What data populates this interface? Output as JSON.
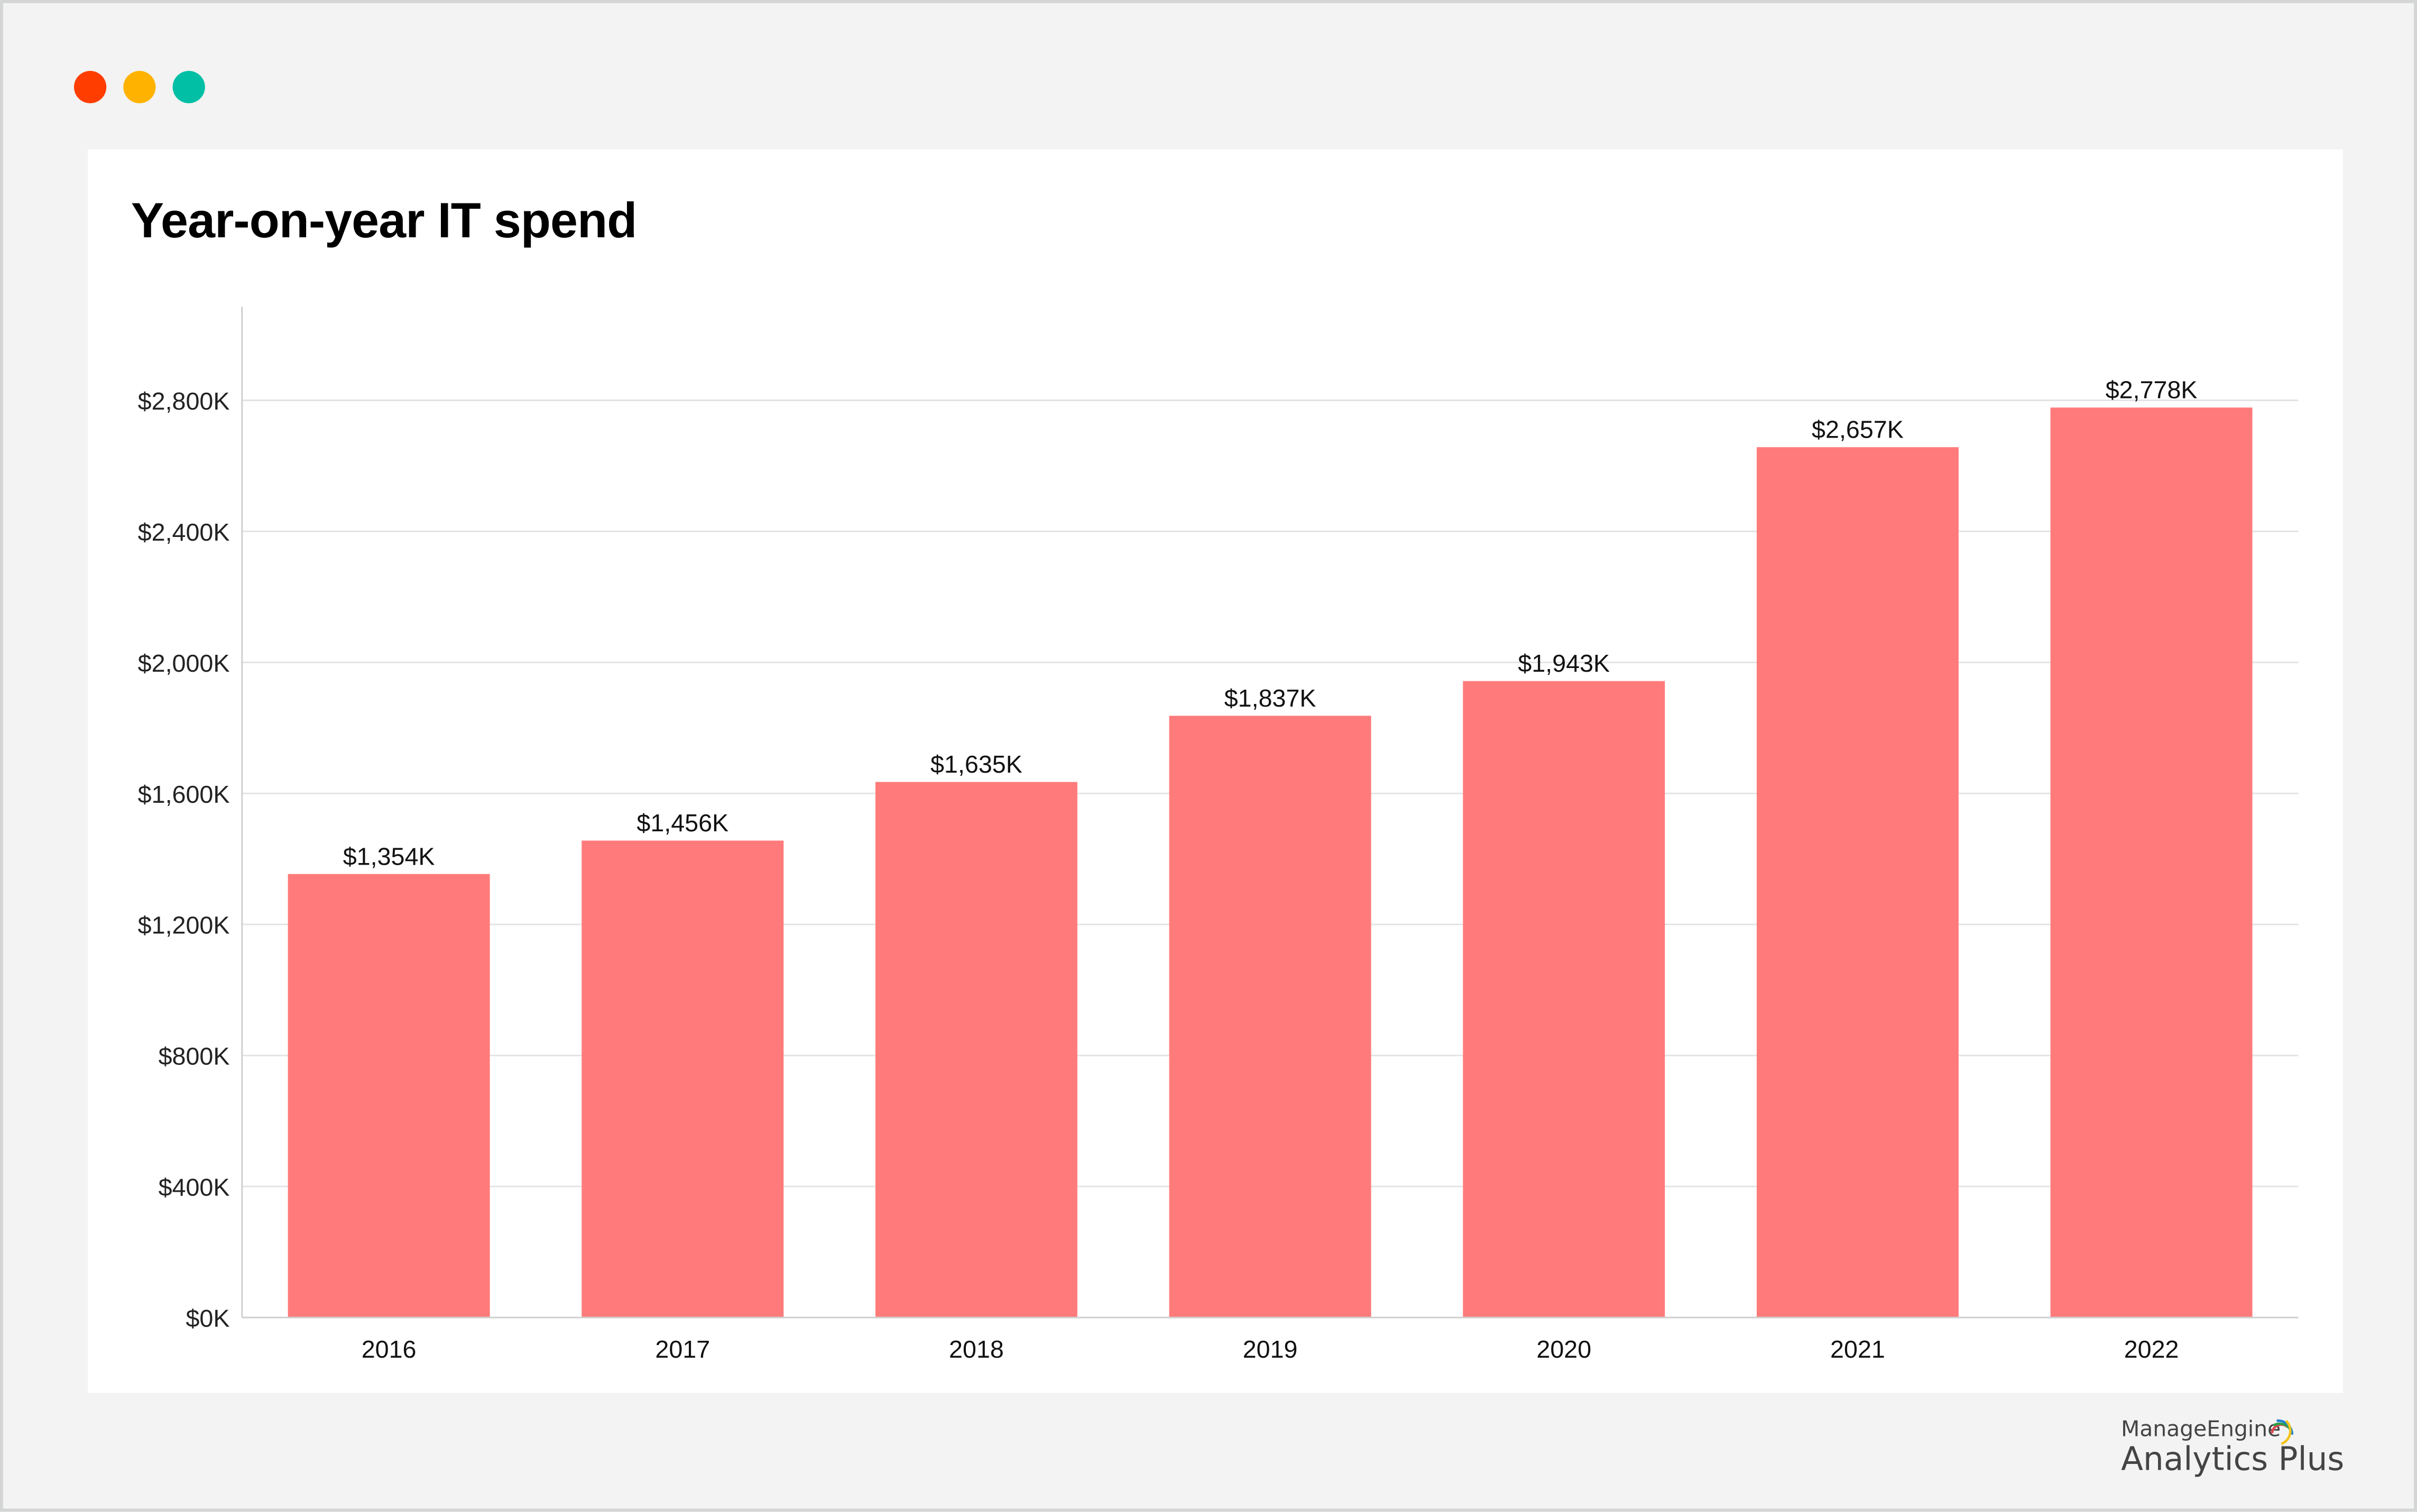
{
  "window": {
    "controls": [
      {
        "name": "close",
        "color": "#ff3d00"
      },
      {
        "name": "minimize",
        "color": "#ffb300"
      },
      {
        "name": "maximize",
        "color": "#00bfa5"
      }
    ]
  },
  "branding": {
    "company": "ManageEngine",
    "product": "Analytics Plus"
  },
  "chart_data": {
    "type": "bar",
    "title": "Year-on-year IT spend",
    "xlabel": "",
    "ylabel": "",
    "categories": [
      "2016",
      "2017",
      "2018",
      "2019",
      "2020",
      "2021",
      "2022"
    ],
    "values": [
      1354,
      1456,
      1635,
      1837,
      1943,
      2657,
      2778
    ],
    "data_labels": [
      "$1,354K",
      "$1,456K",
      "$1,635K",
      "$1,837K",
      "$1,943K",
      "$2,657K",
      "$2,778K"
    ],
    "y_ticks": [
      0,
      400,
      800,
      1200,
      1600,
      2000,
      2400,
      2800
    ],
    "y_tick_labels": [
      "$0K",
      "$400K",
      "$800K",
      "$1,200K",
      "$1,600K",
      "$2,000K",
      "$2,400K",
      "$2,800K"
    ],
    "ylim": [
      0,
      3086
    ],
    "grid": true,
    "legend": "none",
    "bar_color": "#ff7b7b"
  }
}
